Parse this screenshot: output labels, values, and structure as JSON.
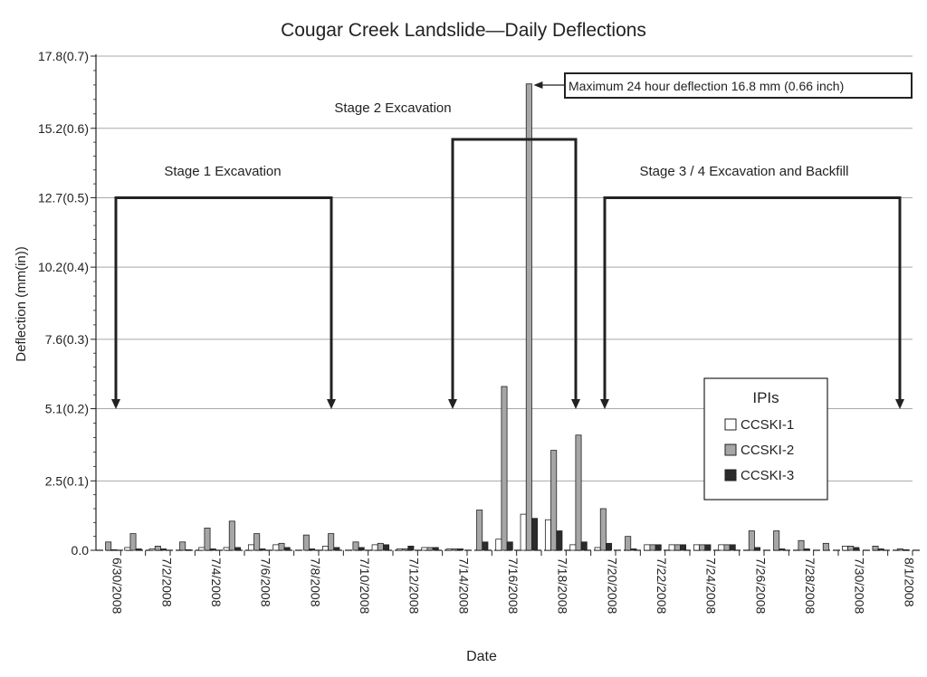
{
  "chart_data": {
    "type": "bar",
    "title": "Cougar Creek Landslide—Daily Deflections",
    "xlabel": "Date",
    "ylabel": "Deflection (mm(in))",
    "ylim": [
      0,
      17.8
    ],
    "y_ticks": [
      {
        "value": 0,
        "label": "0.0"
      },
      {
        "value": 2.5,
        "label": "2.5(0.1)"
      },
      {
        "value": 5.1,
        "label": "5.1(0.2)"
      },
      {
        "value": 7.6,
        "label": "7.6(0.3)"
      },
      {
        "value": 10.2,
        "label": "10.2(0.4)"
      },
      {
        "value": 12.7,
        "label": "12.7(0.5)"
      },
      {
        "value": 15.2,
        "label": "15.2(0.6)"
      },
      {
        "value": 17.8,
        "label": "17.8(0.7)"
      }
    ],
    "grid": true,
    "legend": {
      "title": "IPIs",
      "position": "right"
    },
    "x_tick_labels": [
      "6/30/2008",
      "7/2/2008",
      "7/4/2008",
      "7/6/2008",
      "7/8/2008",
      "7/10/2008",
      "7/12/2008",
      "7/14/2008",
      "7/16/2008",
      "7/18/2008",
      "7/20/2008",
      "7/22/2008",
      "7/24/2008",
      "7/26/2008",
      "7/28/2008",
      "7/30/2008",
      "8/1/2008"
    ],
    "categories": [
      "6/30/2008",
      "7/1/2008",
      "7/2/2008",
      "7/3/2008",
      "7/4/2008",
      "7/5/2008",
      "7/6/2008",
      "7/7/2008",
      "7/8/2008",
      "7/9/2008",
      "7/10/2008",
      "7/11/2008",
      "7/12/2008",
      "7/13/2008",
      "7/14/2008",
      "7/15/2008",
      "7/16/2008",
      "7/17/2008",
      "7/18/2008",
      "7/19/2008",
      "7/20/2008",
      "7/21/2008",
      "7/22/2008",
      "7/23/2008",
      "7/24/2008",
      "7/25/2008",
      "7/26/2008",
      "7/27/2008",
      "7/28/2008",
      "7/29/2008",
      "7/30/2008",
      "7/31/2008",
      "8/1/2008"
    ],
    "series": [
      {
        "name": "CCSKI-1",
        "color": "#ffffff",
        "values": [
          0,
          0.1,
          0.05,
          0,
          0.1,
          0.1,
          0.2,
          0.2,
          0,
          0.15,
          0,
          0.2,
          0.05,
          0.1,
          0.05,
          0,
          0.4,
          1.3,
          1.1,
          0.2,
          0.1,
          0,
          0.2,
          0.2,
          0.2,
          0.2,
          0,
          0,
          0,
          0,
          0.15,
          0,
          0
        ]
      },
      {
        "name": "CCSKI-2",
        "color": "#a6a6a6",
        "values": [
          0.3,
          0.6,
          0.15,
          0.3,
          0.8,
          1.05,
          0.6,
          0.25,
          0.55,
          0.6,
          0.3,
          0.25,
          0.05,
          0.1,
          0.05,
          1.45,
          5.9,
          16.8,
          3.6,
          4.15,
          1.5,
          0.5,
          0.2,
          0.2,
          0.2,
          0.2,
          0.7,
          0.7,
          0.35,
          0.25,
          0.15,
          0.15,
          0.05
        ]
      },
      {
        "name": "CCSKI-3",
        "color": "#2b2b2b",
        "values": [
          0.02,
          0.05,
          0.05,
          0.02,
          0.05,
          0.1,
          0.05,
          0.1,
          0.05,
          0.1,
          0.1,
          0.2,
          0.15,
          0.1,
          0.05,
          0.3,
          0.3,
          1.15,
          0.7,
          0.3,
          0.25,
          0.05,
          0.2,
          0.2,
          0.2,
          0.2,
          0.1,
          0.05,
          0.05,
          0,
          0.1,
          0.05,
          0.02
        ]
      }
    ],
    "annotations": {
      "max_label": "Maximum 24 hour deflection 16.8 mm (0.66 inch)",
      "stages": [
        {
          "label": "Stage 1 Excavation",
          "start": "6/30/2008",
          "end": "7/8/2008",
          "level": 12.7
        },
        {
          "label": "Stage 2 Excavation",
          "start": "7/14/2008",
          "end": "7/19/2008",
          "level": 14.8
        },
        {
          "label": "Stage 3 / 4 Excavation and Backfill",
          "start": "7/20/2008",
          "end": "8/1/2008",
          "level": 12.7
        }
      ]
    }
  }
}
